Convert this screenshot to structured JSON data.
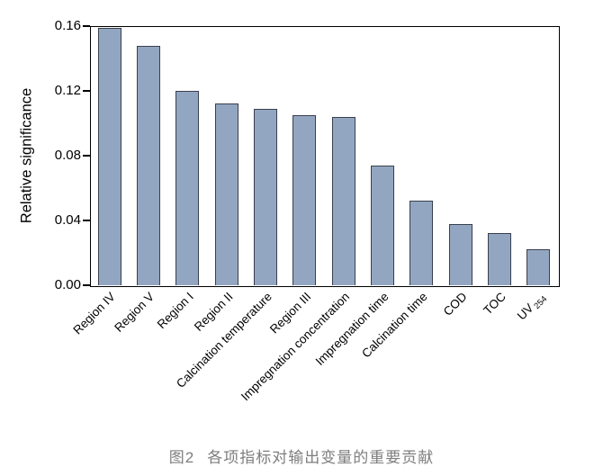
{
  "figure": {
    "caption": {
      "number": "图2",
      "title": "各项指标对输出变量的重要贡献"
    }
  },
  "chart_data": {
    "type": "bar",
    "title": "",
    "xlabel": "",
    "ylabel": "Relative significance",
    "ylim": [
      0,
      0.16
    ],
    "yticks": [
      "0.00",
      "0.04",
      "0.08",
      "0.12",
      "0.16"
    ],
    "grid": false,
    "legend": false,
    "colors": {
      "bar_fill": "#93a6c1",
      "bar_border": "#39404d",
      "axis": "#000000",
      "caption_text": "#7e7e7e"
    },
    "categories": [
      {
        "label": "Region IV"
      },
      {
        "label": "Region V"
      },
      {
        "label": "Region I"
      },
      {
        "label": "Region II"
      },
      {
        "label": "Calcination temperature"
      },
      {
        "label": "Region III"
      },
      {
        "label": "Impregnation concentration"
      },
      {
        "label": "Impregnation time"
      },
      {
        "label": "Calcination time"
      },
      {
        "label": "COD"
      },
      {
        "label": "TOC"
      },
      {
        "label": "UV",
        "sub": "254"
      }
    ],
    "values": [
      0.159,
      0.148,
      0.12,
      0.112,
      0.109,
      0.105,
      0.104,
      0.074,
      0.052,
      0.038,
      0.032,
      0.022
    ]
  }
}
